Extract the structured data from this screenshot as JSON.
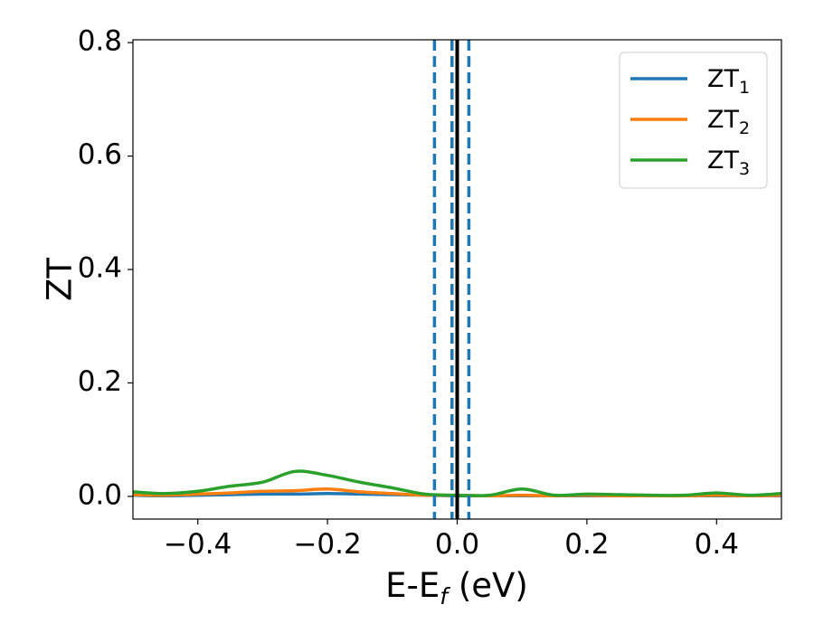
{
  "chart_data": {
    "type": "line",
    "xlabel": "E-E",
    "xlabel_sub": "f",
    "xlabel_unit": " (eV)",
    "ylabel": "ZT",
    "xlim": [
      -0.5,
      0.5
    ],
    "ylim": [
      -0.04,
      0.805
    ],
    "xticks": [
      -0.4,
      -0.2,
      0.0,
      0.2,
      0.4
    ],
    "xtick_labels": [
      "−0.4",
      "−0.2",
      "0.0",
      "0.2",
      "0.4"
    ],
    "yticks": [
      0.0,
      0.2,
      0.4,
      0.6,
      0.8
    ],
    "ytick_labels": [
      "0.0",
      "0.2",
      "0.4",
      "0.6",
      "0.8"
    ],
    "grid": false,
    "legend_position": "top-right",
    "vertical_lines": [
      {
        "x": -0.035,
        "style": "dashed",
        "color": "#1f77b4"
      },
      {
        "x": -0.008,
        "style": "dashed",
        "color": "#1f77b4"
      },
      {
        "x": 0.018,
        "style": "dashed",
        "color": "#1f77b4"
      },
      {
        "x": 0.0,
        "style": "solid",
        "color": "#000000"
      }
    ],
    "x": [
      -0.5,
      -0.45,
      -0.4,
      -0.35,
      -0.3,
      -0.25,
      -0.2,
      -0.15,
      -0.1,
      -0.05,
      0.0,
      0.05,
      0.1,
      0.15,
      0.2,
      0.25,
      0.3,
      0.35,
      0.4,
      0.45,
      0.5
    ],
    "series": [
      {
        "name": "ZT",
        "sub": "1",
        "color": "#1f77b4",
        "values": [
          0.002,
          0.001,
          0.002,
          0.003,
          0.004,
          0.004,
          0.005,
          0.004,
          0.003,
          0.002,
          0.001,
          0.001,
          0.001,
          0.001,
          0.001,
          0.001,
          0.001,
          0.001,
          0.001,
          0.001,
          0.001
        ]
      },
      {
        "name": "ZT",
        "sub": "2",
        "color": "#ff7f0e",
        "values": [
          0.003,
          0.002,
          0.004,
          0.006,
          0.009,
          0.01,
          0.013,
          0.008,
          0.005,
          0.002,
          0.002,
          0.001,
          0.002,
          0.001,
          0.002,
          0.001,
          0.001,
          0.001,
          0.002,
          0.001,
          0.002
        ]
      },
      {
        "name": "ZT",
        "sub": "3",
        "color": "#2ca02c",
        "values": [
          0.008,
          0.005,
          0.009,
          0.018,
          0.025,
          0.044,
          0.037,
          0.025,
          0.015,
          0.004,
          0.002,
          0.002,
          0.013,
          0.002,
          0.004,
          0.003,
          0.002,
          0.002,
          0.006,
          0.002,
          0.005
        ]
      }
    ]
  }
}
